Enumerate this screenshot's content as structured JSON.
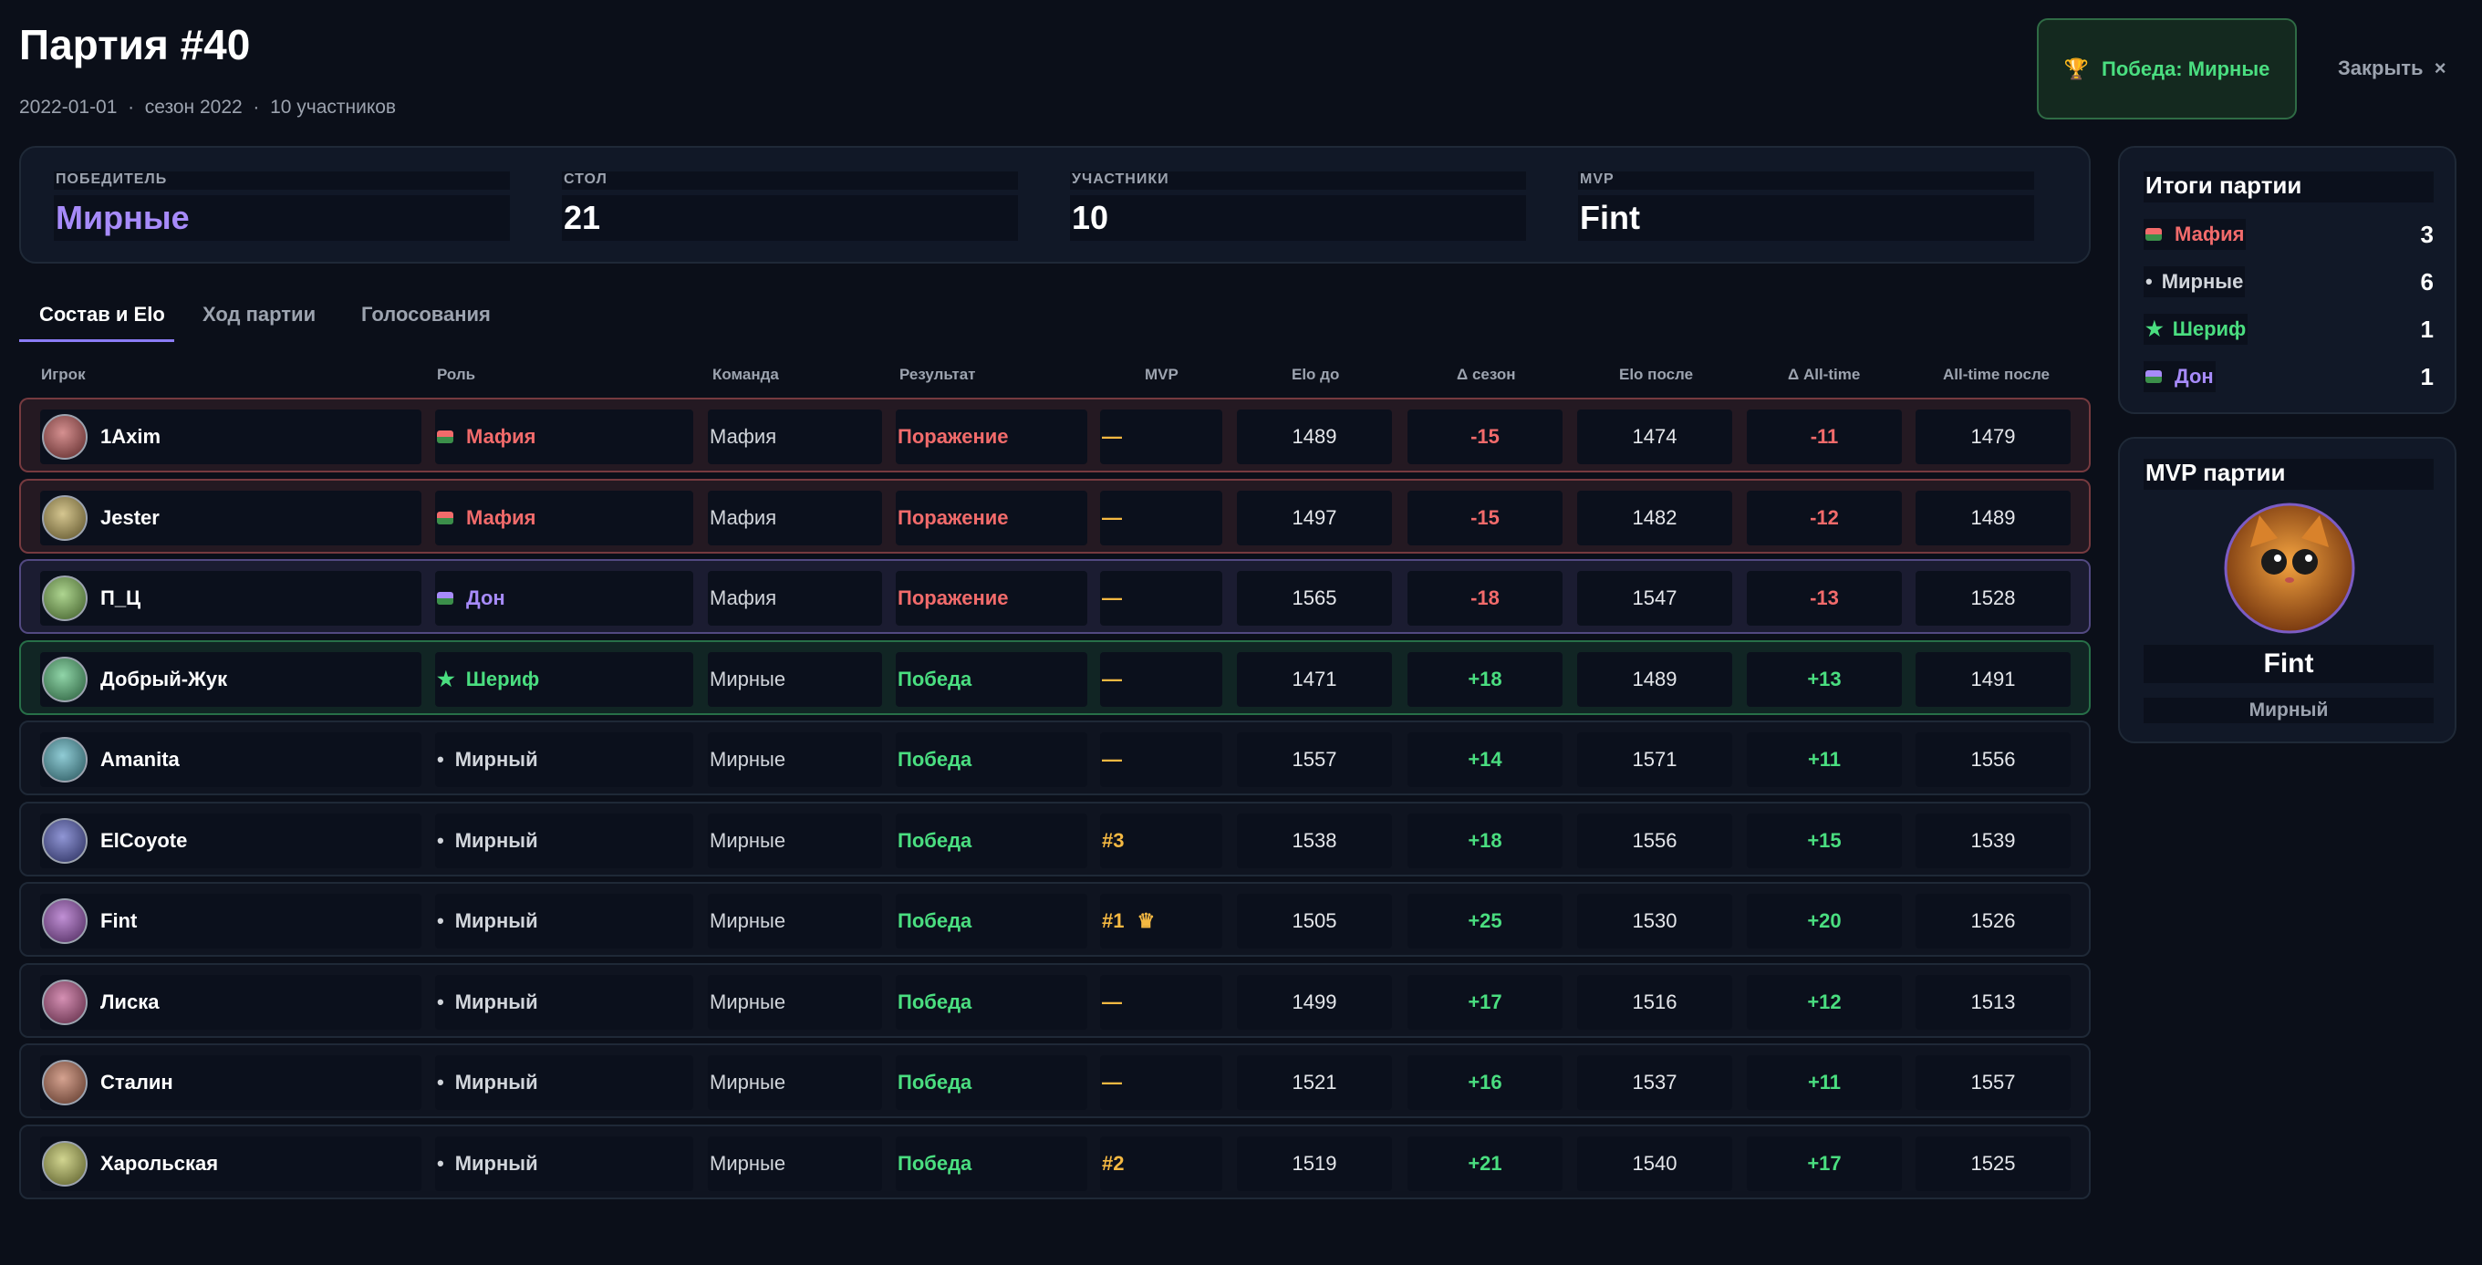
{
  "header": {
    "title": "Партия #40",
    "date": "2022-01-01",
    "season": "сезон 2022",
    "participants": "10 участников",
    "winner_badge": "Победа: Мирные",
    "close": "Закрыть"
  },
  "summary": [
    {
      "label": "ПОБЕДИТЕЛЬ",
      "value": "Мирные",
      "color": "#a78bfa"
    },
    {
      "label": "СТОЛ",
      "value": "21",
      "color": "#ffffff"
    },
    {
      "label": "УЧАСТНИКИ",
      "value": "10",
      "color": "#ffffff"
    },
    {
      "label": "MVP",
      "value": "Fint",
      "color": "#ffffff"
    }
  ],
  "tabs": [
    "Состав и Elo",
    "Ход партии",
    "Голосования"
  ],
  "table": {
    "columns": [
      "Игрок",
      "Роль",
      "Команда",
      "Результат",
      "MVP",
      "Elo до",
      "Δ сезон",
      "Elo после",
      "Δ All-time",
      "All-time после"
    ],
    "rows": [
      {
        "player": "1Axim",
        "role": "Мафия",
        "role_color": "#f26b6b",
        "team": "Мафия",
        "result": "Поражение",
        "mvp": "—",
        "elo_before": "1489",
        "delta_season": "-15",
        "elo_after": "1474",
        "delta_alltime": "-11",
        "alltime_after": "1479"
      },
      {
        "player": "Jester",
        "role": "Мафия",
        "role_color": "#f26b6b",
        "team": "Мафия",
        "result": "Поражение",
        "mvp": "—",
        "elo_before": "1497",
        "delta_season": "-15",
        "elo_after": "1482",
        "delta_alltime": "-12",
        "alltime_after": "1489"
      },
      {
        "player": "П_Ц",
        "role": "Дон",
        "role_color": "#a78bfa",
        "team": "Мафия",
        "result": "Поражение",
        "mvp": "—",
        "elo_before": "1565",
        "delta_season": "-18",
        "elo_after": "1547",
        "delta_alltime": "-13",
        "alltime_after": "1528"
      },
      {
        "player": "Добрый-Жук",
        "role": "Шериф",
        "role_icon": "★",
        "role_color": "#4ade80",
        "team": "Мирные",
        "result": "Победа",
        "mvp": "—",
        "elo_before": "1471",
        "delta_season": "+18",
        "elo_after": "1489",
        "delta_alltime": "+13",
        "alltime_after": "1491"
      },
      {
        "player": "Amanita",
        "role": "Мирный",
        "role_icon": "•",
        "role_color": "#d1d5db",
        "team": "Мирные",
        "result": "Победа",
        "mvp": "—",
        "elo_before": "1557",
        "delta_season": "+14",
        "elo_after": "1571",
        "delta_alltime": "+11",
        "alltime_after": "1556"
      },
      {
        "player": "ElCoyote",
        "role": "Мирный",
        "role_icon": "•",
        "role_color": "#d1d5db",
        "team": "Мирные",
        "result": "Победа",
        "mvp": "#3",
        "elo_before": "1538",
        "delta_season": "+18",
        "elo_after": "1556",
        "delta_alltime": "+15",
        "alltime_after": "1539"
      },
      {
        "player": "Fint",
        "role": "Мирный",
        "role_icon": "•",
        "role_color": "#d1d5db",
        "team": "Мирные",
        "result": "Победа",
        "mvp": "#1",
        "mvp_badge": "♛",
        "elo_before": "1505",
        "delta_season": "+25",
        "elo_after": "1530",
        "delta_alltime": "+20",
        "alltime_after": "1526"
      },
      {
        "player": "Лиска",
        "role": "Мирный",
        "role_icon": "•",
        "role_color": "#d1d5db",
        "team": "Мирные",
        "result": "Победа",
        "mvp": "—",
        "elo_before": "1499",
        "delta_season": "+17",
        "elo_after": "1516",
        "delta_alltime": "+12",
        "alltime_after": "1513"
      },
      {
        "player": "Сталин",
        "role": "Мирный",
        "role_icon": "•",
        "role_color": "#d1d5db",
        "team": "Мирные",
        "result": "Победа",
        "mvp": "—",
        "elo_before": "1521",
        "delta_season": "+16",
        "elo_after": "1537",
        "delta_alltime": "+11",
        "alltime_after": "1557"
      },
      {
        "player": "Харольская",
        "role": "Мирный",
        "role_icon": "•",
        "role_color": "#d1d5db",
        "team": "Мирные",
        "result": "Победа",
        "mvp": "#2",
        "elo_before": "1519",
        "delta_season": "+21",
        "elo_after": "1540",
        "delta_alltime": "+17",
        "alltime_after": "1525"
      }
    ]
  },
  "totals": {
    "title": "Итоги партии",
    "items": [
      {
        "name": "Мафия",
        "count": "3",
        "color": "#f26b6b"
      },
      {
        "name": "Мирные",
        "icon": "•",
        "count": "6",
        "color": "#d1d5db"
      },
      {
        "name": "Шериф",
        "icon": "★",
        "count": "1",
        "color": "#4ade80"
      },
      {
        "name": "Дон",
        "count": "1",
        "color": "#a78bfa"
      }
    ]
  },
  "mvp": {
    "title": "MVP партии",
    "name": "Fint",
    "role": "Мирный"
  }
}
